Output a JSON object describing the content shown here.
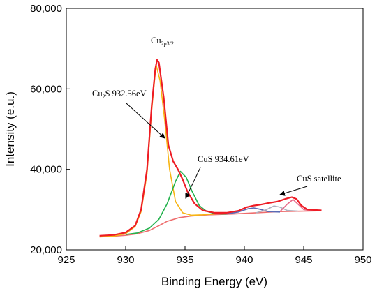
{
  "chart_data": {
    "type": "line",
    "title": "",
    "xlabel": "Binding Energy (eV)",
    "ylabel": "Intensity (e.u.)",
    "xlim": [
      925,
      950
    ],
    "ylim": [
      20000,
      80000
    ],
    "x_ticks": [
      925,
      930,
      935,
      940,
      945,
      950
    ],
    "x_tick_labels": [
      "925",
      "930",
      "935",
      "940",
      "945",
      "950"
    ],
    "y_ticks": [
      20000,
      40000,
      60000,
      80000
    ],
    "y_tick_labels": [
      "20,000",
      "40,000",
      "60,000",
      "80,000"
    ],
    "grid": false,
    "legend": "none",
    "series": [
      {
        "color": "#ee1c25",
        "points": [
          [
            927.8,
            23500
          ],
          [
            929,
            23700
          ],
          [
            930,
            24300
          ],
          [
            930.8,
            26000
          ],
          [
            931.3,
            30000
          ],
          [
            931.8,
            40000
          ],
          [
            932.2,
            56000
          ],
          [
            932.5,
            65000
          ],
          [
            932.65,
            67200
          ],
          [
            932.8,
            66500
          ],
          [
            933.2,
            58000
          ],
          [
            933.6,
            46000
          ],
          [
            934.0,
            42000
          ],
          [
            934.4,
            40000
          ],
          [
            934.8,
            37500
          ],
          [
            935.2,
            34500
          ],
          [
            935.8,
            31500
          ],
          [
            936.5,
            29800
          ],
          [
            937.5,
            29200
          ],
          [
            938.5,
            29200
          ],
          [
            939.5,
            29700
          ],
          [
            940.2,
            30600
          ],
          [
            940.8,
            31000
          ],
          [
            941.3,
            31200
          ],
          [
            942.0,
            31600
          ],
          [
            942.8,
            32000
          ],
          [
            943.5,
            32700
          ],
          [
            944.0,
            33100
          ],
          [
            944.4,
            32600
          ],
          [
            944.8,
            31000
          ],
          [
            945.3,
            30000
          ],
          [
            946.5,
            29800
          ]
        ]
      },
      {
        "color": "#f7b515",
        "points": [
          [
            927.8,
            23200
          ],
          [
            929,
            23400
          ],
          [
            930,
            24000
          ],
          [
            930.8,
            25800
          ],
          [
            931.3,
            29500
          ],
          [
            931.8,
            39000
          ],
          [
            932.2,
            55000
          ],
          [
            932.56,
            66000
          ],
          [
            932.9,
            62000
          ],
          [
            933.3,
            52000
          ],
          [
            933.7,
            40000
          ],
          [
            934.2,
            32000
          ],
          [
            934.8,
            29200
          ],
          [
            935.5,
            28600
          ],
          [
            936.5,
            28700
          ],
          [
            937.5,
            28900
          ]
        ]
      },
      {
        "color": "#22b24c",
        "points": [
          [
            930,
            23800
          ],
          [
            931,
            24200
          ],
          [
            932,
            25400
          ],
          [
            932.8,
            27600
          ],
          [
            933.5,
            31500
          ],
          [
            934.2,
            37000
          ],
          [
            934.61,
            39500
          ],
          [
            935.1,
            38000
          ],
          [
            935.6,
            34500
          ],
          [
            936.2,
            31000
          ],
          [
            936.8,
            29600
          ],
          [
            937.5,
            29000
          ],
          [
            938.5,
            28900
          ]
        ]
      },
      {
        "color": "#ee6d6d",
        "points": [
          [
            927.8,
            23300
          ],
          [
            929,
            23400
          ],
          [
            930,
            23600
          ],
          [
            931,
            24000
          ],
          [
            932,
            24800
          ],
          [
            932.8,
            26000
          ],
          [
            933.5,
            27100
          ],
          [
            934.5,
            28000
          ],
          [
            935.5,
            28400
          ],
          [
            937,
            28700
          ],
          [
            939,
            28900
          ],
          [
            941,
            29200
          ],
          [
            943,
            29500
          ],
          [
            946.5,
            29700
          ]
        ]
      },
      {
        "color": "#5a6ab5",
        "points": [
          [
            938.5,
            28900
          ],
          [
            939.5,
            29400
          ],
          [
            940.3,
            30200
          ],
          [
            940.8,
            30400
          ],
          [
            941.3,
            30100
          ],
          [
            942.0,
            29500
          ],
          [
            943,
            29400
          ]
        ]
      },
      {
        "color": "#b0b0c0",
        "points": [
          [
            941.0,
            29200
          ],
          [
            941.8,
            29900
          ],
          [
            942.5,
            30900
          ],
          [
            943.0,
            30600
          ],
          [
            943.6,
            29800
          ],
          [
            944.5,
            29600
          ]
        ]
      },
      {
        "color": "#e86b8b",
        "points": [
          [
            943.0,
            29500
          ],
          [
            943.6,
            31300
          ],
          [
            944.1,
            32500
          ],
          [
            944.5,
            31400
          ],
          [
            945.0,
            30000
          ],
          [
            946.0,
            29700
          ]
        ]
      }
    ],
    "annotations": [
      {
        "text": "Cu",
        "sub": "2p3/2",
        "suffix": ""
      },
      {
        "text": "Cu",
        "sub": "2",
        "suffix": "S 932.56eV"
      },
      {
        "text": "CuS 934.61eV",
        "sub": "",
        "suffix": ""
      },
      {
        "text": "CuS satellite",
        "sub": "",
        "suffix": ""
      }
    ]
  }
}
